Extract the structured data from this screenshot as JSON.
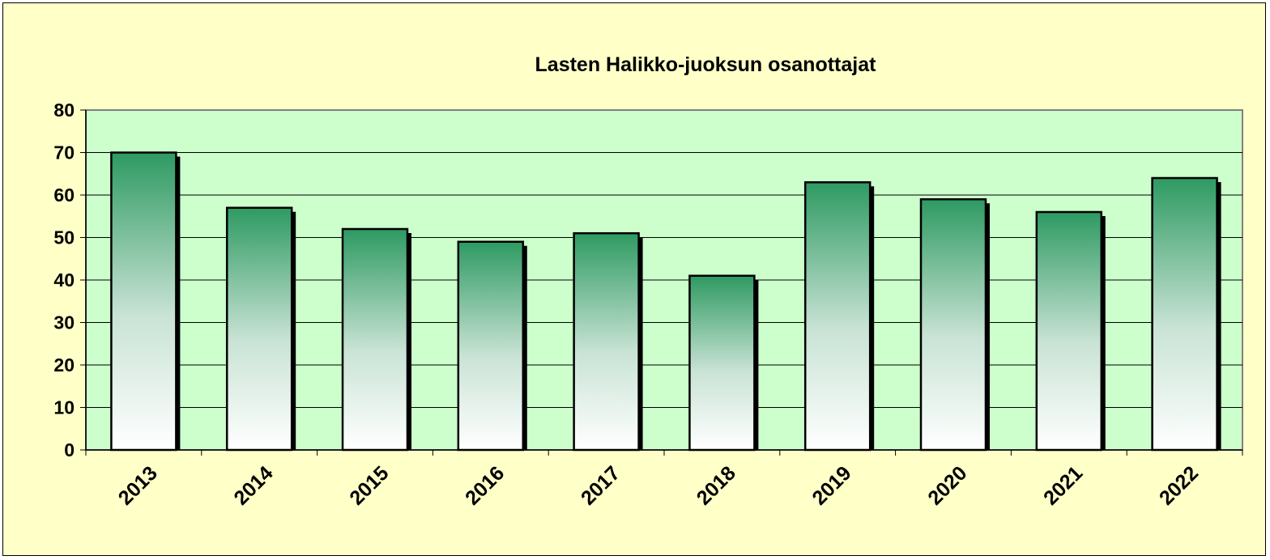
{
  "chart_data": {
    "type": "bar",
    "title": "Lasten Halikko-juoksun osanottajat",
    "xlabel": "",
    "ylabel": "",
    "categories": [
      "2013",
      "2014",
      "2015",
      "2016",
      "2017",
      "2018",
      "2019",
      "2020",
      "2021",
      "2022"
    ],
    "values": [
      70,
      57,
      52,
      49,
      51,
      41,
      63,
      59,
      56,
      64
    ],
    "ylim": [
      0,
      80
    ],
    "yticks": [
      0,
      10,
      20,
      30,
      40,
      50,
      60,
      70,
      80
    ],
    "grid": true,
    "legend": "none",
    "colors": {
      "chart_background": "#ffffc8",
      "plot_background": "#ccffcc",
      "bar_top": "#2e9a62",
      "bar_bottom": "#ffffff",
      "bar_shadow": "#000000",
      "gridline": "#000000",
      "plot_border": "#808080"
    }
  }
}
